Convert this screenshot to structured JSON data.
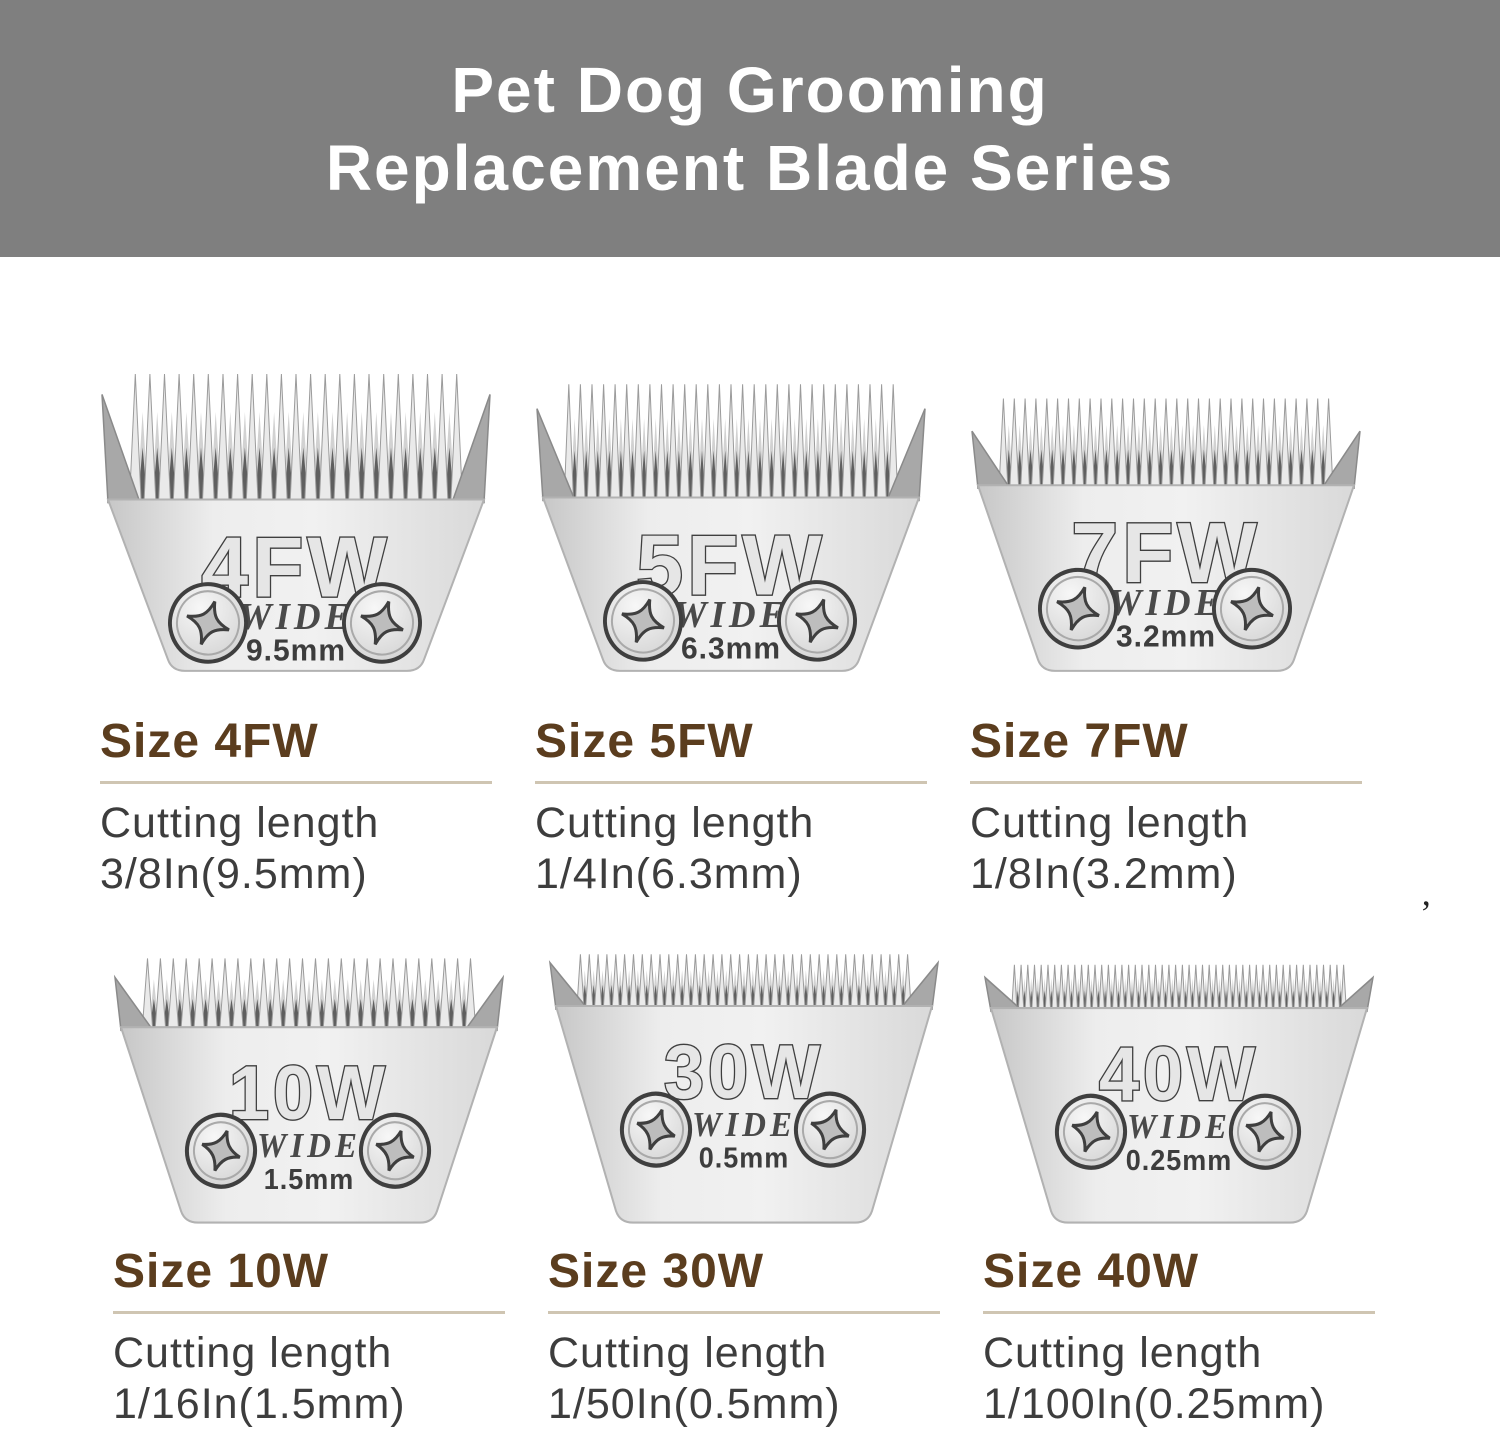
{
  "banner": {
    "line1": "Pet Dog Grooming",
    "line2": "Replacement Blade Series",
    "bg": "#7f7f7f",
    "text_color": "#ffffff"
  },
  "colors": {
    "heading": "#5b3d1e",
    "underline": "#cfc5b2",
    "body_text": "#3d3d3d",
    "blade_body_light": "#ededed",
    "blade_body_mid": "#d9d9d9",
    "blade_edge": "#8f8f8f",
    "engraving": "#3f3f3f",
    "tooth_gap_dark": "#5f5f5f"
  },
  "stray_mark": "’",
  "blades": [
    {
      "code": "4FW",
      "wide_label": "WIDE",
      "gauge": "9.5mm",
      "size_label": "Size 4FW",
      "cutting_line1": "Cutting length",
      "cutting_line2": "3/8In(9.5mm)",
      "teeth": 23,
      "tooth_tip": 2,
      "tooth_base": 126,
      "wing": 104,
      "row": 1
    },
    {
      "code": "5FW",
      "wide_label": "WIDE",
      "gauge": "6.3mm",
      "size_label": "Size 5FW",
      "cutting_line1": "Cutting length",
      "cutting_line2": "1/4In(6.3mm)",
      "teeth": 29,
      "tooth_tip": 12,
      "tooth_base": 124,
      "wing": 88,
      "row": 1
    },
    {
      "code": "7FW",
      "wide_label": "WIDE",
      "gauge": "3.2mm",
      "size_label": "Size 7FW",
      "cutting_line1": "Cutting length",
      "cutting_line2": "1/8In(3.2mm)",
      "teeth": 31,
      "tooth_tip": 26,
      "tooth_base": 112,
      "wing": 54,
      "row": 1
    },
    {
      "code": "10W",
      "wide_label": "WIDE",
      "gauge": "1.5mm",
      "size_label": "Size 10W",
      "cutting_line1": "Cutting length",
      "cutting_line2": "1/16In(1.5mm)",
      "teeth": 26,
      "tooth_tip": 8,
      "tooth_base": 74,
      "wing": 48,
      "row": 2
    },
    {
      "code": "30W",
      "wide_label": "WIDE",
      "gauge": "0.5mm",
      "size_label": "Size 30W",
      "cutting_line1": "Cutting length",
      "cutting_line2": "1/50In(0.5mm)",
      "teeth": 38,
      "tooth_tip": 4,
      "tooth_base": 54,
      "wing": 42,
      "row": 2
    },
    {
      "code": "40W",
      "wide_label": "WIDE",
      "gauge": "0.25mm",
      "size_label": "Size 40W",
      "cutting_line1": "Cutting length",
      "cutting_line2": "1/100In(0.25mm)",
      "teeth": 50,
      "tooth_tip": 14,
      "tooth_base": 56,
      "wing": 30,
      "row": 2
    }
  ]
}
